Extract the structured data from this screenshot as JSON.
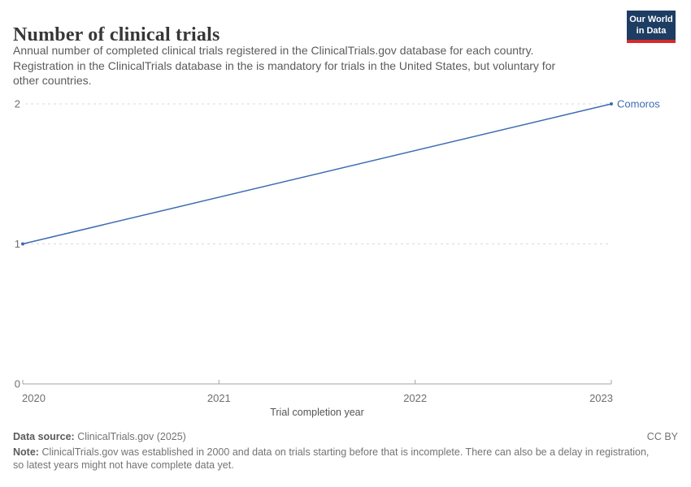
{
  "header": {
    "title": "Number of clinical trials",
    "subtitle_lines": [
      "Annual number of completed clinical trials registered in the ClinicalTrials.gov database for each country.",
      "Registration in the ClinicalTrials database in the is mandatory for trials in the United States, but voluntary for",
      "other countries."
    ],
    "logo": {
      "line1": "Our World",
      "line2": "in Data"
    }
  },
  "chart_data": {
    "type": "line",
    "title": "Number of clinical trials",
    "xlabel": "Trial completion year",
    "ylabel": "",
    "xlim": [
      2020,
      2023
    ],
    "ylim": [
      0,
      2
    ],
    "x_ticks": [
      2020,
      2021,
      2022,
      2023
    ],
    "y_ticks": [
      0,
      1,
      2
    ],
    "grid": "horizontal-dashed",
    "legend_position": "end-of-line-label",
    "series": [
      {
        "name": "Comoros",
        "color": "#3d6bb0",
        "points": [
          {
            "x": 2020,
            "y": 1
          },
          {
            "x": 2023,
            "y": 2
          }
        ]
      }
    ]
  },
  "footer": {
    "source_label": "Data source:",
    "source_text": "ClinicalTrials.gov (2025)",
    "license": "CC BY",
    "note_label": "Note:",
    "note_lines": [
      "ClinicalTrials.gov was established in 2000 and data on trials starting before that is incomplete. There can also be a delay in registration,",
      "so latest years might not have complete data yet."
    ]
  },
  "colors": {
    "accent_blue": "#3d6bb0",
    "logo_navy": "#1d3d63",
    "logo_red": "#d42b2b",
    "gridline": "#d9d9d9",
    "axis": "#a3a3a3",
    "tick_text": "#6e6e6e"
  }
}
